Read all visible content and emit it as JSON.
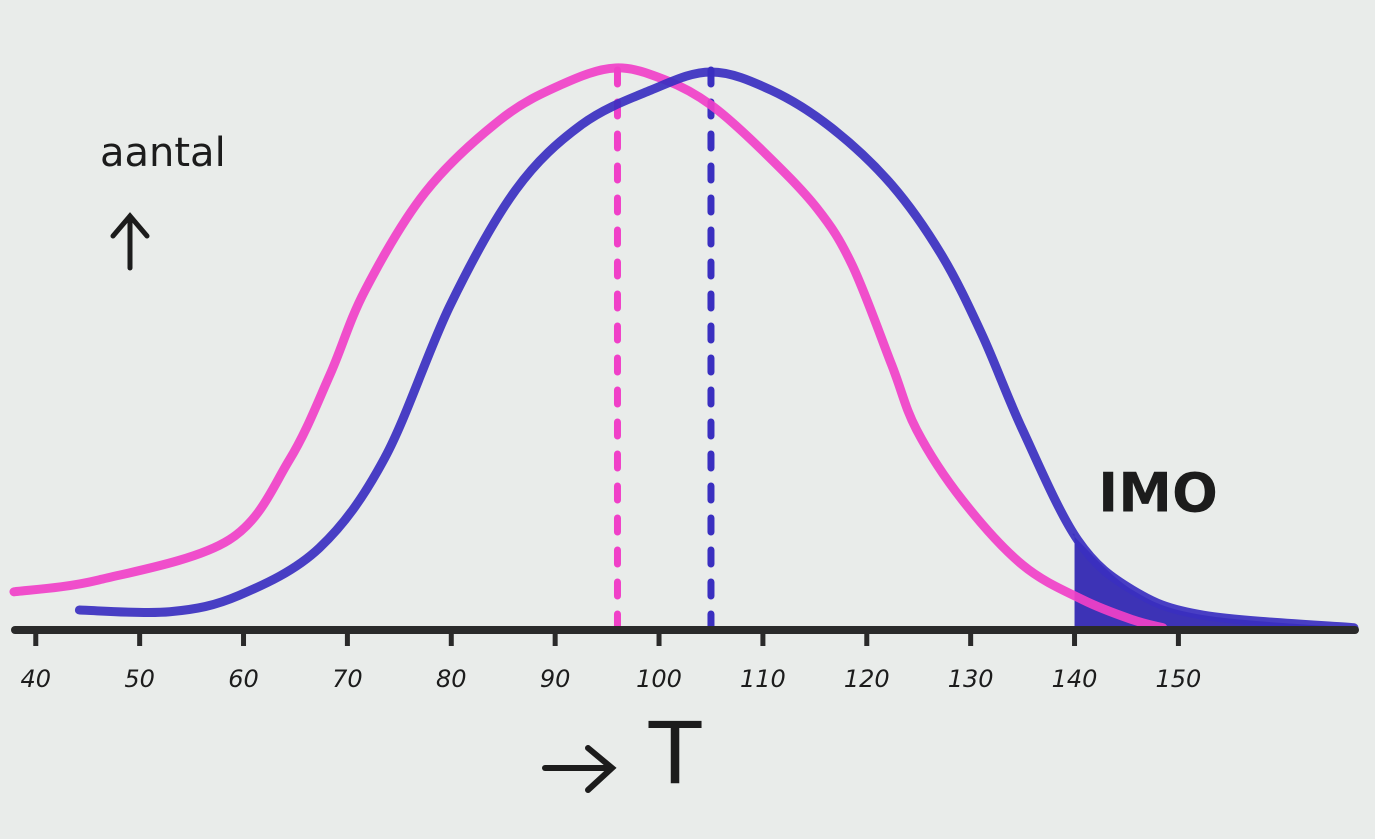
{
  "chart_data": {
    "type": "line",
    "ylabel": "aantal",
    "xlabel": "T",
    "annotation": "IMO",
    "xlim": [
      38,
      167
    ],
    "ylim": [
      0,
      100
    ],
    "xticks": [
      40,
      50,
      60,
      70,
      80,
      90,
      100,
      110,
      120,
      130,
      140,
      150
    ],
    "series": [
      {
        "color": "#f040c8",
        "x": [
          37.9,
          46.1,
          58.6,
          64.4,
          68.3,
          71.7,
          77.5,
          84.7,
          90.5,
          95.8,
          100.6,
          105.0,
          109.9,
          115.2,
          118.6,
          122.4,
          124.8,
          129.2,
          135.0,
          140.8,
          145.6,
          148.5
        ],
        "values": [
          6.7,
          8.8,
          15.8,
          29.8,
          44.7,
          59.6,
          76.8,
          89.5,
          95.6,
          98.6,
          96.5,
          92.1,
          84.2,
          74.0,
          64.0,
          46.5,
          35.1,
          22.8,
          11.4,
          5.3,
          1.8,
          0.4
        ]
      },
      {
        "color": "#3a2fc0",
        "x": [
          44.2,
          52.9,
          59.6,
          67.3,
          73.6,
          79.9,
          86.2,
          92.5,
          99.2,
          105.0,
          110.8,
          116.6,
          122.4,
          127.2,
          131.1,
          135.0,
          140.3,
          145.6,
          152.4,
          166.9
        ],
        "values": [
          3.5,
          3.2,
          6.1,
          14.4,
          30.2,
          57.0,
          77.2,
          88.6,
          94.7,
          97.9,
          94.7,
          88.1,
          78.1,
          65.8,
          51.8,
          35.1,
          15.8,
          7.0,
          2.6,
          0.4
        ]
      }
    ],
    "vlines": [
      {
        "x": 96,
        "color": "#f040c8"
      },
      {
        "x": 105,
        "color": "#3a2fc0"
      }
    ],
    "shade_from": 140,
    "shade_color": "#2a1fb0"
  }
}
